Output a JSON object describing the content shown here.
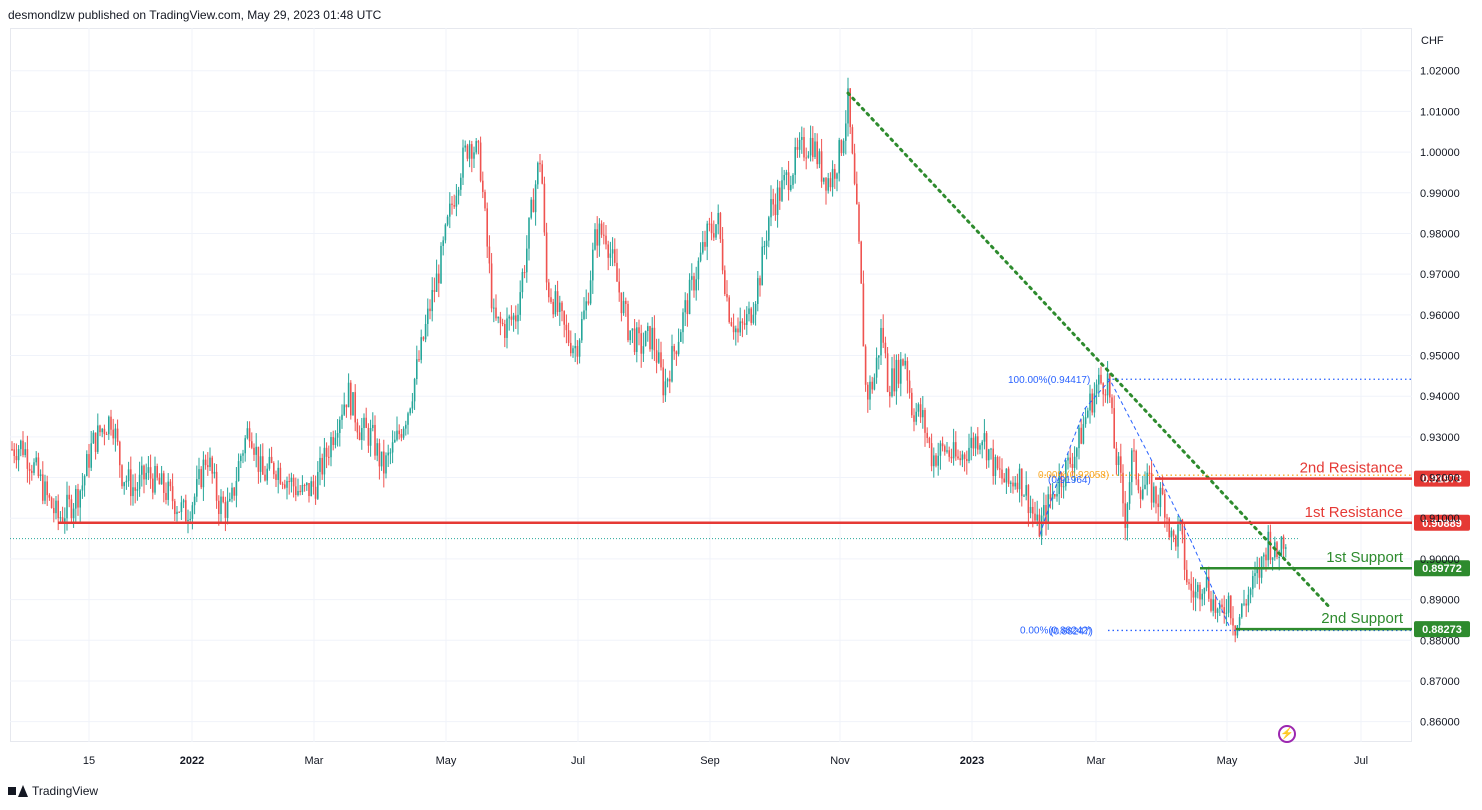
{
  "header": {
    "text": "desmondlzw published on TradingView.com, May 29, 2023 01:48 UTC"
  },
  "footer": {
    "brand": "TradingView"
  },
  "chart_data": {
    "type": "candlestick",
    "title": "",
    "currency_label": "CHF",
    "ylim": [
      0.855,
      1.0305
    ],
    "y_ticks": [
      "1.02000",
      "1.01000",
      "1.00000",
      "0.99000",
      "0.98000",
      "0.97000",
      "0.96000",
      "0.95000",
      "0.94000",
      "0.93000",
      "0.92000",
      "0.91000",
      "0.90000",
      "0.89000",
      "0.88000",
      "0.87000",
      "0.86000"
    ],
    "x_ticks": [
      {
        "label": "15",
        "x": 89
      },
      {
        "label": "2022",
        "x": 192,
        "bold": true
      },
      {
        "label": "Mar",
        "x": 314
      },
      {
        "label": "May",
        "x": 446
      },
      {
        "label": "Jul",
        "x": 578
      },
      {
        "label": "Sep",
        "x": 710
      },
      {
        "label": "Nov",
        "x": 840
      },
      {
        "label": "2023",
        "x": 972,
        "bold": true
      },
      {
        "label": "Mar",
        "x": 1096
      },
      {
        "label": "May",
        "x": 1227
      },
      {
        "label": "Jul",
        "x": 1361
      }
    ],
    "candle_colors": {
      "up": "#26a69a",
      "down": "#ef5350"
    },
    "price_path": [
      [
        12,
        0.927
      ],
      [
        22,
        0.928
      ],
      [
        35,
        0.922
      ],
      [
        47,
        0.915
      ],
      [
        58,
        0.91
      ],
      [
        70,
        0.913
      ],
      [
        82,
        0.918
      ],
      [
        92,
        0.928
      ],
      [
        102,
        0.932
      ],
      [
        112,
        0.935
      ],
      [
        122,
        0.921
      ],
      [
        135,
        0.917
      ],
      [
        147,
        0.921
      ],
      [
        160,
        0.918
      ],
      [
        172,
        0.915
      ],
      [
        185,
        0.911
      ],
      [
        196,
        0.916
      ],
      [
        207,
        0.926
      ],
      [
        218,
        0.914
      ],
      [
        230,
        0.912
      ],
      [
        240,
        0.925
      ],
      [
        250,
        0.933
      ],
      [
        262,
        0.92
      ],
      [
        275,
        0.923
      ],
      [
        290,
        0.919
      ],
      [
        302,
        0.916
      ],
      [
        315,
        0.918
      ],
      [
        327,
        0.926
      ],
      [
        338,
        0.935
      ],
      [
        348,
        0.941
      ],
      [
        360,
        0.932
      ],
      [
        372,
        0.93
      ],
      [
        383,
        0.922
      ],
      [
        395,
        0.928
      ],
      [
        408,
        0.937
      ],
      [
        420,
        0.95
      ],
      [
        430,
        0.962
      ],
      [
        440,
        0.972
      ],
      [
        450,
        0.985
      ],
      [
        460,
        0.996
      ],
      [
        470,
        1.003
      ],
      [
        480,
        0.998
      ],
      [
        486,
        0.98
      ],
      [
        494,
        0.958
      ],
      [
        505,
        0.957
      ],
      [
        516,
        0.96
      ],
      [
        526,
        0.975
      ],
      [
        534,
        0.99
      ],
      [
        541,
        1.0
      ],
      [
        546,
        0.968
      ],
      [
        556,
        0.962
      ],
      [
        566,
        0.955
      ],
      [
        576,
        0.952
      ],
      [
        586,
        0.962
      ],
      [
        596,
        0.98
      ],
      [
        606,
        0.98
      ],
      [
        618,
        0.967
      ],
      [
        628,
        0.957
      ],
      [
        640,
        0.952
      ],
      [
        652,
        0.955
      ],
      [
        664,
        0.942
      ],
      [
        675,
        0.952
      ],
      [
        686,
        0.962
      ],
      [
        698,
        0.972
      ],
      [
        708,
        0.98
      ],
      [
        718,
        0.983
      ],
      [
        728,
        0.962
      ],
      [
        738,
        0.955
      ],
      [
        750,
        0.96
      ],
      [
        760,
        0.97
      ],
      [
        770,
        0.986
      ],
      [
        780,
        0.99
      ],
      [
        790,
        0.995
      ],
      [
        800,
        1.0
      ],
      [
        812,
        1.003
      ],
      [
        822,
        0.995
      ],
      [
        830,
        0.993
      ],
      [
        840,
        1.0
      ],
      [
        848,
        1.012
      ],
      [
        854,
        0.992
      ],
      [
        858,
        0.98
      ],
      [
        862,
        0.962
      ],
      [
        866,
        0.94
      ],
      [
        874,
        0.944
      ],
      [
        882,
        0.957
      ],
      [
        888,
        0.943
      ],
      [
        895,
        0.945
      ],
      [
        905,
        0.95
      ],
      [
        912,
        0.937
      ],
      [
        922,
        0.935
      ],
      [
        932,
        0.925
      ],
      [
        945,
        0.927
      ],
      [
        958,
        0.924
      ],
      [
        970,
        0.928
      ],
      [
        982,
        0.931
      ],
      [
        995,
        0.922
      ],
      [
        1008,
        0.918
      ],
      [
        1018,
        0.921
      ],
      [
        1028,
        0.915
      ],
      [
        1038,
        0.907
      ],
      [
        1048,
        0.913
      ],
      [
        1058,
        0.919
      ],
      [
        1068,
        0.923
      ],
      [
        1078,
        0.928
      ],
      [
        1088,
        0.937
      ],
      [
        1098,
        0.943
      ],
      [
        1108,
        0.944
      ],
      [
        1114,
        0.928
      ],
      [
        1120,
        0.92
      ],
      [
        1125,
        0.91
      ],
      [
        1132,
        0.925
      ],
      [
        1140,
        0.918
      ],
      [
        1148,
        0.918
      ],
      [
        1156,
        0.915
      ],
      [
        1164,
        0.915
      ],
      [
        1172,
        0.904
      ],
      [
        1180,
        0.907
      ],
      [
        1188,
        0.893
      ],
      [
        1196,
        0.891
      ],
      [
        1204,
        0.896
      ],
      [
        1212,
        0.89
      ],
      [
        1220,
        0.885
      ],
      [
        1228,
        0.891
      ],
      [
        1236,
        0.883
      ],
      [
        1244,
        0.889
      ],
      [
        1252,
        0.893
      ],
      [
        1260,
        0.897
      ],
      [
        1268,
        0.905
      ],
      [
        1276,
        0.9
      ],
      [
        1282,
        0.905
      ],
      [
        1288,
        0.906
      ]
    ],
    "levels": [
      {
        "name": "2nd Resistance",
        "value": 0.91973,
        "color": "#e53935",
        "x_start": 1155
      },
      {
        "name": "1st Resistance",
        "value": 0.90889,
        "color": "#e53935",
        "x_start": 58
      },
      {
        "name": "1st Support",
        "value": 0.89772,
        "color": "#2e8b2e",
        "x_start": 1200
      },
      {
        "name": "2nd Support",
        "value": 0.88273,
        "color": "#2e8b2e",
        "x_start": 1236
      }
    ],
    "level_labels": {
      "r2": "2nd Resistance",
      "r1": "1st Resistance",
      "s1": "1st Support",
      "s2": "2nd Support"
    },
    "price_tags": {
      "r2": "0.91973",
      "r1": "0.90889",
      "s1": "0.89772",
      "s2": "0.88273"
    },
    "fib": {
      "top_label": "100.00%(0.94417)",
      "top_value": 0.94417,
      "mid_label_a": "0.00%(0.92058)",
      "mid_value": 0.92058,
      "mid_label_b": "(0.91964)",
      "mid_value_b": 0.91964,
      "bottom_label": "0.00%(0.88242)",
      "bottom_label_b": "(0.88247)",
      "bottom_value": 0.88242
    },
    "current_price": 0.905,
    "trendline": {
      "from": [
        848,
        1.0145
      ],
      "to": [
        1330,
        0.888
      ],
      "color": "#2e8b2e"
    }
  }
}
